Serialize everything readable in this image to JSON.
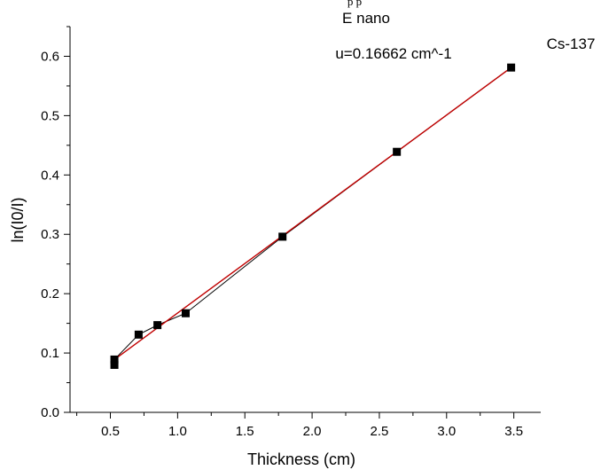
{
  "page": {
    "top_fragment": "p      p"
  },
  "chart_data": {
    "type": "scatter",
    "title": "E nano",
    "xlabel": "Thickness (cm)",
    "ylabel": "ln(I0/I)",
    "xlim": [
      0.2,
      3.7
    ],
    "ylim": [
      0.0,
      0.65
    ],
    "x_ticks": [
      0.5,
      1.0,
      1.5,
      2.0,
      2.5,
      3.0,
      3.5
    ],
    "x_tick_labels": [
      "0.5",
      "1.0",
      "1.5",
      "2.0",
      "2.5",
      "3.0",
      "3.5"
    ],
    "y_ticks": [
      0.0,
      0.1,
      0.2,
      0.3,
      0.4,
      0.5,
      0.6
    ],
    "y_tick_labels": [
      "0.0",
      "0.1",
      "0.2",
      "0.3",
      "0.4",
      "0.5",
      "0.6"
    ],
    "grid": false,
    "annotations": [
      {
        "text": "u=0.16662 cm^-1"
      },
      {
        "text": "Cs-137"
      }
    ],
    "series": [
      {
        "kind": "points",
        "color": "#000000",
        "marker": "square",
        "connected": true,
        "x": [
          0.53,
          0.53,
          0.71,
          0.85,
          1.06,
          1.78,
          2.63,
          3.48
        ],
        "y": [
          0.08,
          0.089,
          0.131,
          0.147,
          0.167,
          0.296,
          0.439,
          0.581
        ]
      },
      {
        "kind": "fit",
        "color": "#c00000",
        "x": [
          0.53,
          3.48
        ],
        "y": [
          0.089,
          0.581
        ]
      }
    ]
  }
}
